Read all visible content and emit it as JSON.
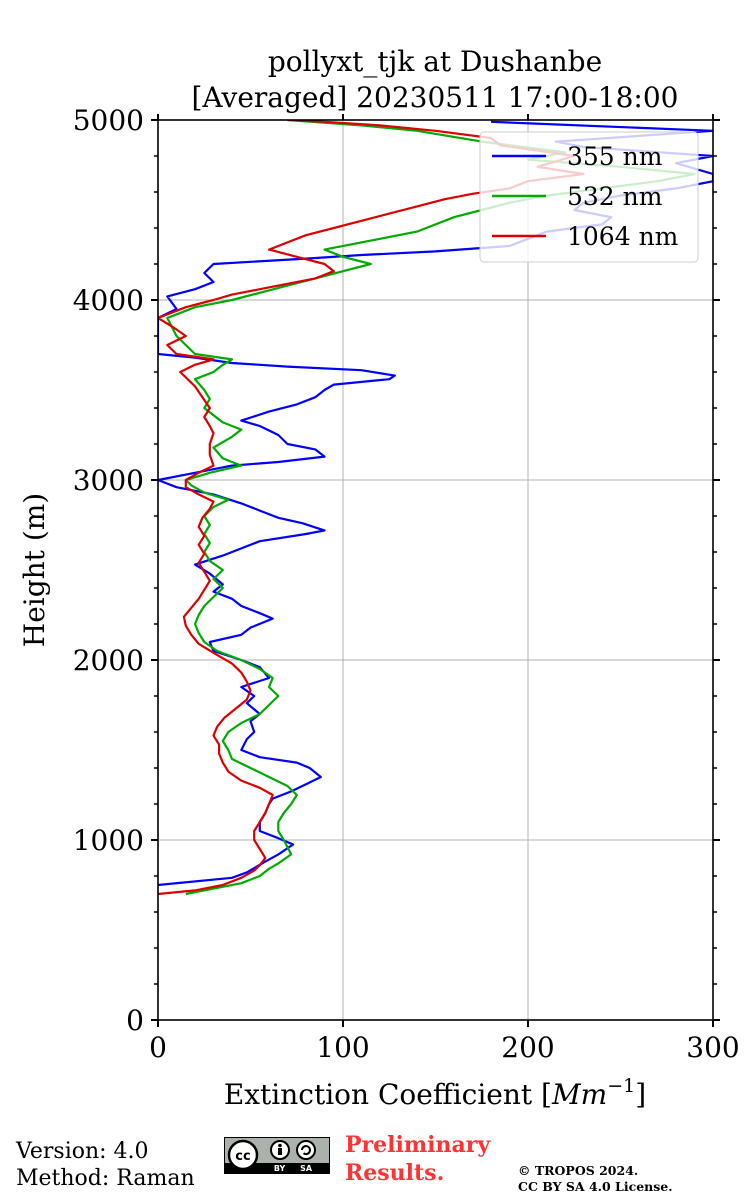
{
  "chart_data": {
    "type": "line",
    "title": "pollyxt_tjk at Dushanbe",
    "subtitle": "[Averaged] 20230511 17:00-18:00",
    "xlabel": "Extinction Coefficient [Mm⁻¹]",
    "xlabel_base": "Extinction Coefficient [",
    "xlabel_unit": "Mm",
    "xlabel_exp": "−1",
    "xlabel_end": "]",
    "ylabel": "Height (m)",
    "xlim": [
      0,
      300
    ],
    "ylim": [
      0,
      5000
    ],
    "xticks": [
      "0",
      "100",
      "200",
      "300"
    ],
    "yticks": [
      "0",
      "1000",
      "2000",
      "3000",
      "4000",
      "5000"
    ],
    "grid": true,
    "legend_position": "top-right",
    "series": [
      {
        "name": "355 nm",
        "color": "#0000ff",
        "points": [
          [
            0,
            750
          ],
          [
            40,
            790
          ],
          [
            48,
            820
          ],
          [
            53,
            850
          ],
          [
            58,
            880
          ],
          [
            65,
            920
          ],
          [
            73,
            975
          ],
          [
            65,
            1010
          ],
          [
            55,
            1050
          ],
          [
            55,
            1100
          ],
          [
            58,
            1150
          ],
          [
            60,
            1200
          ],
          [
            62,
            1230
          ],
          [
            72,
            1270
          ],
          [
            80,
            1310
          ],
          [
            88,
            1350
          ],
          [
            82,
            1400
          ],
          [
            75,
            1430
          ],
          [
            55,
            1460
          ],
          [
            45,
            1500
          ],
          [
            48,
            1560
          ],
          [
            52,
            1600
          ],
          [
            50,
            1660
          ],
          [
            55,
            1700
          ],
          [
            48,
            1760
          ],
          [
            52,
            1800
          ],
          [
            45,
            1850
          ],
          [
            60,
            1900
          ],
          [
            55,
            1960
          ],
          [
            45,
            2000
          ],
          [
            30,
            2050
          ],
          [
            28,
            2100
          ],
          [
            45,
            2140
          ],
          [
            50,
            2180
          ],
          [
            62,
            2230
          ],
          [
            55,
            2260
          ],
          [
            45,
            2300
          ],
          [
            40,
            2340
          ],
          [
            30,
            2380
          ],
          [
            35,
            2420
          ],
          [
            28,
            2480
          ],
          [
            20,
            2530
          ],
          [
            35,
            2580
          ],
          [
            45,
            2620
          ],
          [
            55,
            2660
          ],
          [
            80,
            2700
          ],
          [
            90,
            2720
          ],
          [
            78,
            2760
          ],
          [
            65,
            2790
          ],
          [
            55,
            2830
          ],
          [
            45,
            2870
          ],
          [
            30,
            2920
          ],
          [
            10,
            2960
          ],
          [
            0,
            3000
          ],
          [
            20,
            3040
          ],
          [
            40,
            3080
          ],
          [
            65,
            3100
          ],
          [
            90,
            3130
          ],
          [
            85,
            3170
          ],
          [
            70,
            3200
          ],
          [
            65,
            3250
          ],
          [
            55,
            3300
          ],
          [
            45,
            3330
          ],
          [
            60,
            3380
          ],
          [
            75,
            3420
          ],
          [
            85,
            3460
          ],
          [
            90,
            3500
          ],
          [
            95,
            3530
          ],
          [
            125,
            3560
          ],
          [
            128,
            3580
          ],
          [
            110,
            3610
          ],
          [
            70,
            3630
          ],
          [
            40,
            3650
          ],
          [
            20,
            3680
          ],
          [
            0,
            3700
          ],
          [
            0,
            3900
          ],
          [
            10,
            3950
          ],
          [
            5,
            4020
          ],
          [
            20,
            4060
          ],
          [
            30,
            4100
          ],
          [
            25,
            4150
          ],
          [
            30,
            4200
          ],
          [
            80,
            4230
          ],
          [
            110,
            4250
          ],
          [
            150,
            4270
          ],
          [
            190,
            4300
          ],
          [
            200,
            4340
          ],
          [
            210,
            4380
          ],
          [
            240,
            4420
          ],
          [
            245,
            4460
          ],
          [
            225,
            4500
          ],
          [
            230,
            4540
          ],
          [
            250,
            4580
          ],
          [
            280,
            4620
          ],
          [
            300,
            4660
          ],
          [
            300,
            4700
          ],
          [
            280,
            4760
          ],
          [
            300,
            4800
          ],
          [
            230,
            4850
          ],
          [
            215,
            4880
          ],
          [
            300,
            4940
          ],
          [
            180,
            4990
          ]
        ]
      },
      {
        "name": "532 nm",
        "color": "#00aa00",
        "points": [
          [
            15,
            700
          ],
          [
            25,
            720
          ],
          [
            45,
            760
          ],
          [
            55,
            800
          ],
          [
            60,
            840
          ],
          [
            65,
            870
          ],
          [
            72,
            920
          ],
          [
            70,
            960
          ],
          [
            68,
            1000
          ],
          [
            65,
            1050
          ],
          [
            65,
            1100
          ],
          [
            68,
            1150
          ],
          [
            72,
            1200
          ],
          [
            75,
            1250
          ],
          [
            70,
            1300
          ],
          [
            60,
            1350
          ],
          [
            50,
            1400
          ],
          [
            40,
            1450
          ],
          [
            38,
            1500
          ],
          [
            35,
            1550
          ],
          [
            38,
            1600
          ],
          [
            45,
            1650
          ],
          [
            55,
            1700
          ],
          [
            60,
            1750
          ],
          [
            65,
            1800
          ],
          [
            60,
            1850
          ],
          [
            62,
            1900
          ],
          [
            55,
            1950
          ],
          [
            45,
            2000
          ],
          [
            32,
            2050
          ],
          [
            25,
            2100
          ],
          [
            22,
            2150
          ],
          [
            20,
            2200
          ],
          [
            22,
            2250
          ],
          [
            25,
            2300
          ],
          [
            30,
            2350
          ],
          [
            35,
            2400
          ],
          [
            30,
            2450
          ],
          [
            35,
            2500
          ],
          [
            28,
            2550
          ],
          [
            25,
            2600
          ],
          [
            28,
            2650
          ],
          [
            25,
            2700
          ],
          [
            28,
            2750
          ],
          [
            25,
            2800
          ],
          [
            30,
            2850
          ],
          [
            38,
            2890
          ],
          [
            25,
            2930
          ],
          [
            18,
            2970
          ],
          [
            15,
            3000
          ],
          [
            28,
            3040
          ],
          [
            45,
            3080
          ],
          [
            35,
            3120
          ],
          [
            30,
            3180
          ],
          [
            40,
            3240
          ],
          [
            45,
            3280
          ],
          [
            35,
            3320
          ],
          [
            30,
            3360
          ],
          [
            25,
            3400
          ],
          [
            28,
            3450
          ],
          [
            25,
            3500
          ],
          [
            20,
            3560
          ],
          [
            30,
            3600
          ],
          [
            35,
            3640
          ],
          [
            40,
            3670
          ],
          [
            20,
            3700
          ],
          [
            10,
            3800
          ],
          [
            5,
            3900
          ],
          [
            20,
            3960
          ],
          [
            40,
            4000
          ],
          [
            55,
            4040
          ],
          [
            70,
            4080
          ],
          [
            85,
            4120
          ],
          [
            100,
            4160
          ],
          [
            115,
            4200
          ],
          [
            100,
            4240
          ],
          [
            90,
            4280
          ],
          [
            105,
            4310
          ],
          [
            120,
            4340
          ],
          [
            140,
            4380
          ],
          [
            150,
            4420
          ],
          [
            160,
            4460
          ],
          [
            175,
            4500
          ],
          [
            190,
            4540
          ],
          [
            210,
            4580
          ],
          [
            240,
            4620
          ],
          [
            270,
            4660
          ],
          [
            290,
            4700
          ],
          [
            250,
            4740
          ],
          [
            200,
            4780
          ],
          [
            220,
            4820
          ],
          [
            175,
            4880
          ],
          [
            140,
            4940
          ],
          [
            110,
            4970
          ],
          [
            70,
            5000
          ]
        ]
      },
      {
        "name": "1064 nm",
        "color": "#dd0000",
        "points": [
          [
            0,
            700
          ],
          [
            20,
            720
          ],
          [
            35,
            750
          ],
          [
            45,
            790
          ],
          [
            52,
            830
          ],
          [
            55,
            860
          ],
          [
            58,
            900
          ],
          [
            55,
            950
          ],
          [
            52,
            1000
          ],
          [
            52,
            1050
          ],
          [
            55,
            1100
          ],
          [
            58,
            1150
          ],
          [
            60,
            1200
          ],
          [
            62,
            1250
          ],
          [
            55,
            1290
          ],
          [
            45,
            1330
          ],
          [
            38,
            1380
          ],
          [
            35,
            1430
          ],
          [
            33,
            1480
          ],
          [
            33,
            1530
          ],
          [
            30,
            1580
          ],
          [
            32,
            1630
          ],
          [
            36,
            1680
          ],
          [
            42,
            1730
          ],
          [
            48,
            1780
          ],
          [
            50,
            1830
          ],
          [
            48,
            1880
          ],
          [
            45,
            1930
          ],
          [
            40,
            1980
          ],
          [
            30,
            2040
          ],
          [
            22,
            2090
          ],
          [
            18,
            2140
          ],
          [
            15,
            2190
          ],
          [
            14,
            2240
          ],
          [
            18,
            2290
          ],
          [
            22,
            2340
          ],
          [
            25,
            2390
          ],
          [
            28,
            2440
          ],
          [
            25,
            2490
          ],
          [
            22,
            2540
          ],
          [
            25,
            2590
          ],
          [
            22,
            2640
          ],
          [
            25,
            2690
          ],
          [
            22,
            2740
          ],
          [
            24,
            2790
          ],
          [
            28,
            2840
          ],
          [
            30,
            2880
          ],
          [
            22,
            2920
          ],
          [
            15,
            2960
          ],
          [
            15,
            3000
          ],
          [
            22,
            3040
          ],
          [
            30,
            3080
          ],
          [
            28,
            3140
          ],
          [
            28,
            3200
          ],
          [
            30,
            3260
          ],
          [
            28,
            3300
          ],
          [
            25,
            3350
          ],
          [
            28,
            3400
          ],
          [
            24,
            3460
          ],
          [
            20,
            3520
          ],
          [
            15,
            3570
          ],
          [
            12,
            3600
          ],
          [
            20,
            3640
          ],
          [
            30,
            3670
          ],
          [
            10,
            3700
          ],
          [
            5,
            3750
          ],
          [
            15,
            3800
          ],
          [
            8,
            3850
          ],
          [
            0,
            3900
          ],
          [
            15,
            3960
          ],
          [
            30,
            4000
          ],
          [
            40,
            4030
          ],
          [
            55,
            4060
          ],
          [
            70,
            4090
          ],
          [
            85,
            4120
          ],
          [
            95,
            4160
          ],
          [
            90,
            4200
          ],
          [
            75,
            4240
          ],
          [
            60,
            4280
          ],
          [
            70,
            4320
          ],
          [
            80,
            4360
          ],
          [
            95,
            4400
          ],
          [
            110,
            4440
          ],
          [
            125,
            4480
          ],
          [
            140,
            4520
          ],
          [
            155,
            4560
          ],
          [
            170,
            4590
          ],
          [
            190,
            4620
          ],
          [
            200,
            4660
          ],
          [
            230,
            4700
          ],
          [
            205,
            4740
          ],
          [
            225,
            4800
          ],
          [
            185,
            4860
          ],
          [
            180,
            4900
          ],
          [
            150,
            4940
          ],
          [
            120,
            4970
          ],
          [
            90,
            4990
          ],
          [
            70,
            5000
          ]
        ]
      }
    ]
  },
  "footer": {
    "version": "Version: 4.0",
    "method": "Method: Raman",
    "preliminary_line1": "Preliminary",
    "preliminary_line2": "Results.",
    "copyright_line1": "© TROPOS 2024.",
    "copyright_line2": "CC BY SA 4.0 License.",
    "cc_badge_text": "BY SA"
  }
}
